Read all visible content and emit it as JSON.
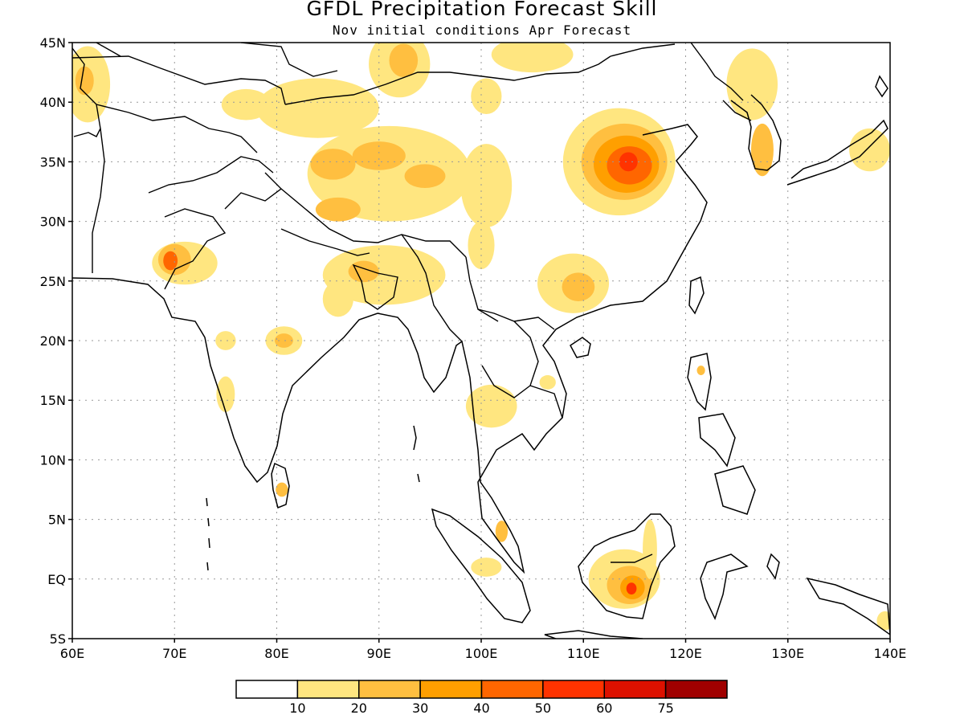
{
  "title": "GFDL Precipitation Forecast Skill",
  "subtitle": "Nov initial conditions  Apr Forecast",
  "map": {
    "lon_range": [
      60,
      140
    ],
    "lat_range": [
      -5,
      45
    ],
    "x_ticks": [
      {
        "lon": 60,
        "label": "60E"
      },
      {
        "lon": 70,
        "label": "70E"
      },
      {
        "lon": 80,
        "label": "80E"
      },
      {
        "lon": 90,
        "label": "90E"
      },
      {
        "lon": 100,
        "label": "100E"
      },
      {
        "lon": 110,
        "label": "110E"
      },
      {
        "lon": 120,
        "label": "120E"
      },
      {
        "lon": 130,
        "label": "130E"
      },
      {
        "lon": 140,
        "label": "140E"
      }
    ],
    "y_ticks": [
      {
        "lat": 45,
        "label": "45N"
      },
      {
        "lat": 40,
        "label": "40N"
      },
      {
        "lat": 35,
        "label": "35N"
      },
      {
        "lat": 30,
        "label": "30N"
      },
      {
        "lat": 25,
        "label": "25N"
      },
      {
        "lat": 20,
        "label": "20N"
      },
      {
        "lat": 15,
        "label": "15N"
      },
      {
        "lat": 10,
        "label": "10N"
      },
      {
        "lat": 5,
        "label": "5N"
      },
      {
        "lat": 0,
        "label": "EQ"
      },
      {
        "lat": -5,
        "label": "5S"
      }
    ],
    "grid": true,
    "skill_regions": [
      {
        "name": "Kazakhstan",
        "lon": 61.5,
        "lat": 41.5,
        "rlon": 2.2,
        "rlat": 3.2,
        "level": 1
      },
      {
        "name": "Kazakhstan core",
        "lon": 61.2,
        "lat": 41.8,
        "rlon": 0.9,
        "rlat": 1.2,
        "level": 2
      },
      {
        "name": "Tian Shan",
        "lon": 77.0,
        "lat": 39.8,
        "rlon": 2.4,
        "rlat": 1.3,
        "level": 1
      },
      {
        "name": "Tarim band",
        "lon": 84.0,
        "lat": 39.5,
        "rlon": 6.0,
        "rlat": 2.5,
        "level": 1
      },
      {
        "name": "Mongolia west",
        "lon": 92.0,
        "lat": 43.2,
        "rlon": 3.0,
        "rlat": 2.8,
        "level": 1
      },
      {
        "name": "Mongolia west core",
        "lon": 92.4,
        "lat": 43.5,
        "rlon": 1.4,
        "rlat": 1.4,
        "level": 2
      },
      {
        "name": "Mongolia east",
        "lon": 105.0,
        "lat": 44.0,
        "rlon": 4.0,
        "rlat": 1.5,
        "level": 1
      },
      {
        "name": "Gansu",
        "lon": 100.5,
        "lat": 40.5,
        "rlon": 1.5,
        "rlat": 1.5,
        "level": 1
      },
      {
        "name": "Tibet",
        "lon": 91.0,
        "lat": 34.0,
        "rlon": 8.0,
        "rlat": 4.0,
        "level": 1
      },
      {
        "name": "Tibet core west",
        "lon": 85.5,
        "lat": 34.8,
        "rlon": 2.2,
        "rlat": 1.3,
        "level": 2
      },
      {
        "name": "Tibet core center",
        "lon": 90.0,
        "lat": 35.5,
        "rlon": 2.6,
        "rlat": 1.2,
        "level": 2
      },
      {
        "name": "Tibet core east",
        "lon": 94.5,
        "lat": 33.8,
        "rlon": 2.0,
        "rlat": 1.0,
        "level": 2
      },
      {
        "name": "Tibet south",
        "lon": 86.0,
        "lat": 31.0,
        "rlon": 2.2,
        "rlat": 1.0,
        "level": 2
      },
      {
        "name": "Qinghai",
        "lon": 100.5,
        "lat": 33.0,
        "rlon": 2.5,
        "rlat": 3.5,
        "level": 1
      },
      {
        "name": "Central China",
        "lon": 113.5,
        "lat": 35.0,
        "rlon": 5.5,
        "rlat": 4.5,
        "level": 1
      },
      {
        "name": "Central China L2",
        "lon": 114.0,
        "lat": 35.0,
        "rlon": 4.2,
        "rlat": 3.2,
        "level": 2
      },
      {
        "name": "Central China L3",
        "lon": 114.2,
        "lat": 34.8,
        "rlon": 3.2,
        "rlat": 2.4,
        "level": 3
      },
      {
        "name": "Central China L4",
        "lon": 114.5,
        "lat": 34.7,
        "rlon": 2.2,
        "rlat": 1.6,
        "level": 4
      },
      {
        "name": "Central China L5",
        "lon": 114.4,
        "lat": 35.0,
        "rlon": 0.9,
        "rlat": 0.8,
        "level": 5
      },
      {
        "name": "Korea",
        "lon": 127.5,
        "lat": 36.0,
        "rlon": 1.1,
        "rlat": 2.2,
        "level": 2
      },
      {
        "name": "Manchuria",
        "lon": 126.5,
        "lat": 41.5,
        "rlon": 2.5,
        "rlat": 3.0,
        "level": 1
      },
      {
        "name": "Japan",
        "lon": 138.0,
        "lat": 36.0,
        "rlon": 2.0,
        "rlat": 1.8,
        "level": 1
      },
      {
        "name": "Pakistan",
        "lon": 71.0,
        "lat": 26.5,
        "rlon": 3.2,
        "rlat": 1.8,
        "level": 1
      },
      {
        "name": "Pakistan L2",
        "lon": 70.0,
        "lat": 26.8,
        "rlon": 1.6,
        "rlat": 1.3,
        "level": 2
      },
      {
        "name": "Pakistan L4",
        "lon": 69.6,
        "lat": 26.7,
        "rlon": 0.7,
        "rlat": 0.8,
        "level": 4
      },
      {
        "name": "NE India",
        "lon": 90.5,
        "lat": 25.5,
        "rlon": 6.0,
        "rlat": 2.5,
        "level": 1
      },
      {
        "name": "NE India core",
        "lon": 88.5,
        "lat": 25.8,
        "rlon": 1.5,
        "rlat": 0.9,
        "level": 2
      },
      {
        "name": "India west",
        "lon": 86.0,
        "lat": 23.5,
        "rlon": 1.5,
        "rlat": 1.5,
        "level": 1
      },
      {
        "name": "Central India",
        "lon": 80.7,
        "lat": 20.0,
        "rlon": 1.8,
        "rlat": 1.2,
        "level": 1
      },
      {
        "name": "Central India core",
        "lon": 80.7,
        "lat": 20.0,
        "rlon": 0.9,
        "rlat": 0.6,
        "level": 2
      },
      {
        "name": "West Ghats",
        "lon": 75.0,
        "lat": 20.0,
        "rlon": 1.0,
        "rlat": 0.8,
        "level": 1
      },
      {
        "name": "South India",
        "lon": 75.0,
        "lat": 15.5,
        "rlon": 0.9,
        "rlat": 1.5,
        "level": 1
      },
      {
        "name": "Sri Lanka",
        "lon": 80.5,
        "lat": 7.5,
        "rlon": 0.6,
        "rlat": 0.6,
        "level": 2
      },
      {
        "name": "Yunnan",
        "lon": 100.0,
        "lat": 28.0,
        "rlon": 1.3,
        "rlat": 2.0,
        "level": 1
      },
      {
        "name": "Guangxi",
        "lon": 109.0,
        "lat": 24.8,
        "rlon": 3.5,
        "rlat": 2.5,
        "level": 1
      },
      {
        "name": "Guangxi core",
        "lon": 109.5,
        "lat": 24.5,
        "rlon": 1.6,
        "rlat": 1.2,
        "level": 2
      },
      {
        "name": "Thailand",
        "lon": 101.0,
        "lat": 14.5,
        "rlon": 2.5,
        "rlat": 1.8,
        "level": 1
      },
      {
        "name": "Laos",
        "lon": 106.5,
        "lat": 16.5,
        "rlon": 0.8,
        "rlat": 0.6,
        "level": 1
      },
      {
        "name": "Malaya",
        "lon": 100.5,
        "lat": 1.0,
        "rlon": 1.5,
        "rlat": 0.8,
        "level": 1
      },
      {
        "name": "Malaya north",
        "lon": 102.0,
        "lat": 4.0,
        "rlon": 0.6,
        "rlat": 0.9,
        "level": 2
      },
      {
        "name": "Borneo",
        "lon": 114.0,
        "lat": 0.0,
        "rlon": 3.5,
        "rlat": 2.5,
        "level": 1
      },
      {
        "name": "Borneo L2",
        "lon": 114.5,
        "lat": -0.5,
        "rlon": 2.2,
        "rlat": 1.6,
        "level": 2
      },
      {
        "name": "Borneo L3",
        "lon": 114.8,
        "lat": -0.7,
        "rlon": 1.2,
        "rlat": 1.0,
        "level": 3
      },
      {
        "name": "Borneo L5",
        "lon": 114.7,
        "lat": -0.8,
        "rlon": 0.5,
        "rlat": 0.5,
        "level": 5
      },
      {
        "name": "Borneo north",
        "lon": 116.5,
        "lat": 2.5,
        "rlon": 0.7,
        "rlat": 2.5,
        "level": 1
      },
      {
        "name": "Luzon",
        "lon": 121.5,
        "lat": 17.5,
        "rlon": 0.4,
        "rlat": 0.4,
        "level": 2
      },
      {
        "name": "Seram",
        "lon": 139.5,
        "lat": -3.5,
        "rlon": 0.8,
        "rlat": 0.8,
        "level": 1
      }
    ]
  },
  "legend": {
    "colors": [
      "#ffffff",
      "#ffe680",
      "#ffbf40",
      "#ff9f00",
      "#ff6600",
      "#ff3300",
      "#dd1100",
      "#a00000"
    ],
    "labels": [
      "10",
      "20",
      "30",
      "40",
      "50",
      "60",
      "75"
    ]
  }
}
